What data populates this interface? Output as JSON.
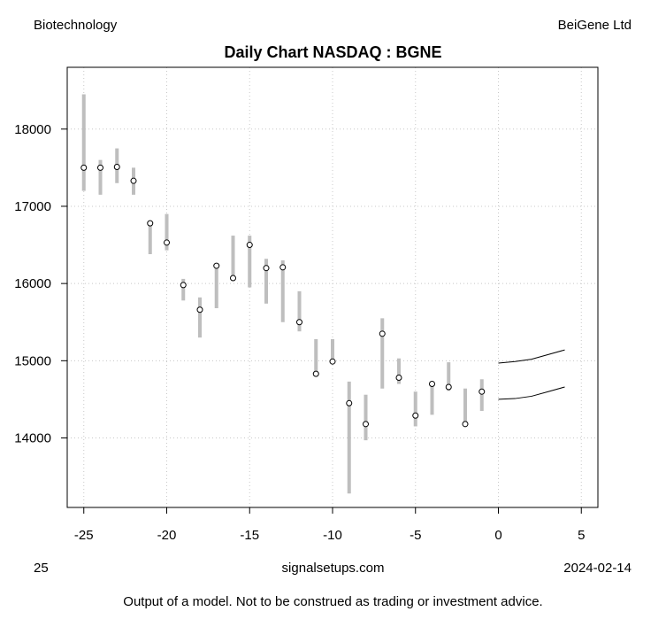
{
  "header": {
    "sector": "Biotechnology",
    "company": "BeiGene Ltd"
  },
  "footer": {
    "left": "25",
    "center": "signalsetups.com",
    "right": "2024-02-14",
    "disclaimer": "Output of a model.  Not to be construed as trading or investment advice."
  },
  "chart_data": {
    "type": "ohlc-range",
    "title": "Daily Chart NASDAQ : BGNE",
    "xlabel": "",
    "ylabel": "",
    "xlim": [
      -26,
      6
    ],
    "ylim": [
      13100,
      18800
    ],
    "grid": true,
    "x_ticks": [
      -25,
      -20,
      -15,
      -10,
      -5,
      0,
      5
    ],
    "y_ticks": [
      14000,
      15000,
      16000,
      17000,
      18000
    ],
    "colors": {
      "range_bar": "#bebebe",
      "point": "#000000",
      "forecast": "#000000",
      "grid": "#c8c8c8"
    },
    "bars": [
      {
        "x": -25,
        "low": 17200,
        "high": 18450,
        "close": 17500
      },
      {
        "x": -24,
        "low": 17150,
        "high": 17600,
        "close": 17500
      },
      {
        "x": -23,
        "low": 17300,
        "high": 17750,
        "close": 17510
      },
      {
        "x": -22,
        "low": 17150,
        "high": 17500,
        "close": 17330
      },
      {
        "x": -21,
        "low": 16380,
        "high": 16800,
        "close": 16780
      },
      {
        "x": -20,
        "low": 16430,
        "high": 16900,
        "close": 16530
      },
      {
        "x": -19,
        "low": 15780,
        "high": 16060,
        "close": 15980
      },
      {
        "x": -18,
        "low": 15300,
        "high": 15820,
        "close": 15660
      },
      {
        "x": -17,
        "low": 15680,
        "high": 16250,
        "close": 16230
      },
      {
        "x": -16,
        "low": 16070,
        "high": 16620,
        "close": 16070
      },
      {
        "x": -15,
        "low": 15950,
        "high": 16620,
        "close": 16500
      },
      {
        "x": -14,
        "low": 15740,
        "high": 16320,
        "close": 16200
      },
      {
        "x": -13,
        "low": 15500,
        "high": 16300,
        "close": 16210
      },
      {
        "x": -12,
        "low": 15380,
        "high": 15900,
        "close": 15500
      },
      {
        "x": -11,
        "low": 14830,
        "high": 15280,
        "close": 14830
      },
      {
        "x": -10,
        "low": 14970,
        "high": 15280,
        "close": 14990
      },
      {
        "x": -9,
        "low": 13280,
        "high": 14730,
        "close": 14450
      },
      {
        "x": -8,
        "low": 13970,
        "high": 14560,
        "close": 14180
      },
      {
        "x": -7,
        "low": 14640,
        "high": 15550,
        "close": 15350
      },
      {
        "x": -6,
        "low": 14700,
        "high": 15030,
        "close": 14780
      },
      {
        "x": -5,
        "low": 14150,
        "high": 14600,
        "close": 14290
      },
      {
        "x": -4,
        "low": 14300,
        "high": 14700,
        "close": 14700
      },
      {
        "x": -3,
        "low": 14610,
        "high": 14980,
        "close": 14660
      },
      {
        "x": -2,
        "low": 14170,
        "high": 14640,
        "close": 14180
      },
      {
        "x": -1,
        "low": 14350,
        "high": 14760,
        "close": 14600
      }
    ],
    "forecast": {
      "x": [
        0,
        1,
        2,
        3,
        4
      ],
      "upper": [
        14970,
        14990,
        15020,
        15080,
        15140
      ],
      "lower": [
        14500,
        14510,
        14540,
        14600,
        14660
      ]
    }
  }
}
